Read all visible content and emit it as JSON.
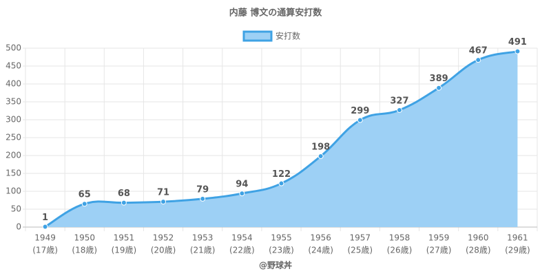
{
  "chart_data": {
    "type": "line",
    "title": "内藤 博文の通算安打数",
    "footer": "@野球丼",
    "categories": [
      [
        "1949",
        "(17歳)"
      ],
      [
        "1950",
        "(18歳)"
      ],
      [
        "1951",
        "(19歳)"
      ],
      [
        "1952",
        "(20歳)"
      ],
      [
        "1953",
        "(21歳)"
      ],
      [
        "1954",
        "(22歳)"
      ],
      [
        "1955",
        "(23歳)"
      ],
      [
        "1956",
        "(24歳)"
      ],
      [
        "1957",
        "(25歳)"
      ],
      [
        "1958",
        "(26歳)"
      ],
      [
        "1959",
        "(27歳)"
      ],
      [
        "1960",
        "(28歳)"
      ],
      [
        "1961",
        "(29歳)"
      ]
    ],
    "series": [
      {
        "name": "安打数",
        "color": "#3fa2e4",
        "fill": "#9dd0f5",
        "values": [
          1,
          65,
          68,
          71,
          79,
          94,
          122,
          198,
          299,
          327,
          389,
          467,
          491
        ]
      }
    ],
    "ylim": [
      0,
      500
    ],
    "yticks": [
      0,
      50,
      100,
      150,
      200,
      250,
      300,
      350,
      400,
      450,
      500
    ],
    "grid": true,
    "legend": "top"
  }
}
